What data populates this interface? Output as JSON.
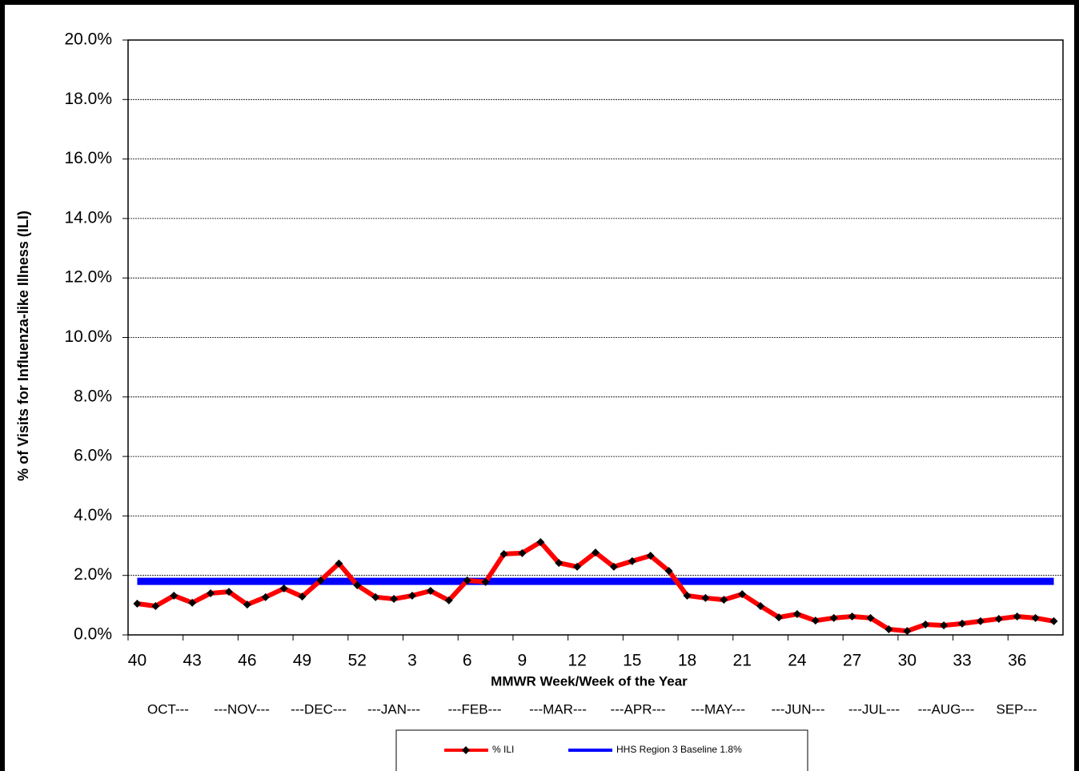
{
  "chart_data": {
    "type": "line",
    "x_label": "MMWR Week/Week of the Year",
    "y_label": "% of Visits for Influenza-like Illness  (ILI)",
    "categories": [
      "40",
      null,
      null,
      "43",
      null,
      null,
      "46",
      null,
      null,
      "49",
      null,
      null,
      "52",
      null,
      null,
      "3",
      null,
      null,
      "6",
      null,
      null,
      "9",
      null,
      null,
      "12",
      null,
      null,
      "15",
      null,
      null,
      "18",
      null,
      null,
      "21",
      null,
      null,
      "24",
      null,
      null,
      "27",
      null,
      null,
      "30",
      null,
      null,
      "33",
      null,
      null,
      "36",
      null,
      null
    ],
    "month_labels": [
      "OCT---",
      "---NOV---",
      "---DEC---",
      "---JAN---",
      "---FEB---",
      "---MAR---",
      "---APR---",
      "---MAY---",
      "---JUN---",
      "---JUL---",
      "---AUG---",
      "SEP---"
    ],
    "series": [
      {
        "name": "% ILI",
        "color": "#ff0000",
        "marker_color": "#000000",
        "values": [
          1.05,
          0.97,
          1.32,
          1.08,
          1.4,
          1.45,
          1.02,
          1.27,
          1.56,
          1.29,
          1.83,
          2.4,
          1.67,
          1.27,
          1.21,
          1.32,
          1.48,
          1.16,
          1.83,
          1.78,
          2.72,
          2.75,
          3.12,
          2.42,
          2.29,
          2.77,
          2.29,
          2.48,
          2.66,
          2.15,
          1.32,
          1.24,
          1.18,
          1.37,
          0.97,
          0.59,
          0.7,
          0.48,
          0.57,
          0.62,
          0.57,
          0.19,
          0.13,
          0.35,
          0.32,
          0.38,
          0.46,
          0.54,
          0.62,
          0.57,
          0.46
        ]
      },
      {
        "name": "HHS Region 3 Baseline 1.8%",
        "color": "#0000ff",
        "values": [
          1.8,
          1.8,
          1.8,
          1.8,
          1.8,
          1.8,
          1.8,
          1.8,
          1.8,
          1.8,
          1.8,
          1.8,
          1.8,
          1.8,
          1.8,
          1.8,
          1.8,
          1.8,
          1.8,
          1.8,
          1.8,
          1.8,
          1.8,
          1.8,
          1.8,
          1.8,
          1.8,
          1.8,
          1.8,
          1.8,
          1.8,
          1.8,
          1.8,
          1.8,
          1.8,
          1.8,
          1.8,
          1.8,
          1.8,
          1.8,
          1.8,
          1.8,
          1.8,
          1.8,
          1.8,
          1.8,
          1.8,
          1.8,
          1.8,
          1.8,
          1.8
        ]
      }
    ],
    "ylim": [
      0,
      20
    ],
    "yticks": [
      {
        "value": 0,
        "label": "0.0%"
      },
      {
        "value": 2,
        "label": "2.0%"
      },
      {
        "value": 4,
        "label": "4.0%"
      },
      {
        "value": 6,
        "label": "6.0%"
      },
      {
        "value": 8,
        "label": "8.0%"
      },
      {
        "value": 10,
        "label": "10.0%"
      },
      {
        "value": 12,
        "label": "12.0%"
      },
      {
        "value": 14,
        "label": "14.0%"
      },
      {
        "value": 16,
        "label": "16.0%"
      },
      {
        "value": 18,
        "label": "18.0%"
      },
      {
        "value": 20,
        "label": "20.0%"
      }
    ],
    "grid": true
  }
}
